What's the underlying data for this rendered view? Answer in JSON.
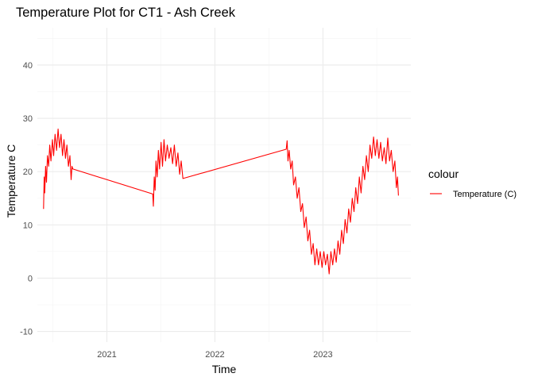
{
  "chart_data": {
    "type": "line",
    "title": "Temperature Plot for CT1 - Ash Creek",
    "xlabel": "Time",
    "ylabel": "Temperature C",
    "x_ticks": [
      "2021",
      "2022",
      "2023"
    ],
    "x_tick_values": [
      "2021-01-01",
      "2022-01-01",
      "2023-01-01"
    ],
    "y_ticks": [
      -10,
      0,
      10,
      20,
      30,
      40
    ],
    "xlim": [
      "2020-05-11",
      "2023-10-25"
    ],
    "ylim": [
      -12,
      47
    ],
    "grid": true,
    "legend": {
      "title": "colour",
      "position": "right"
    },
    "series": [
      {
        "name": "Temperature (C)",
        "color": "#ff0000",
        "points": [
          [
            "2020-06-01",
            13
          ],
          [
            "2020-06-03",
            19
          ],
          [
            "2020-06-05",
            16
          ],
          [
            "2020-06-08",
            21
          ],
          [
            "2020-06-11",
            18
          ],
          [
            "2020-06-14",
            23
          ],
          [
            "2020-06-18",
            21
          ],
          [
            "2020-06-22",
            25
          ],
          [
            "2020-06-26",
            22
          ],
          [
            "2020-07-01",
            26
          ],
          [
            "2020-07-05",
            23
          ],
          [
            "2020-07-10",
            27
          ],
          [
            "2020-07-15",
            24
          ],
          [
            "2020-07-20",
            28
          ],
          [
            "2020-07-25",
            24.5
          ],
          [
            "2020-07-30",
            27
          ],
          [
            "2020-08-04",
            23
          ],
          [
            "2020-08-09",
            26
          ],
          [
            "2020-08-14",
            22.5
          ],
          [
            "2020-08-19",
            25
          ],
          [
            "2020-08-24",
            21
          ],
          [
            "2020-08-29",
            23
          ],
          [
            "2020-09-02",
            18.5
          ],
          [
            "2020-09-05",
            21
          ],
          [
            "2020-09-08",
            20.5
          ],
          [
            "2021-06-05",
            15.8
          ],
          [
            "2021-06-07",
            13.5
          ],
          [
            "2021-06-10",
            19
          ],
          [
            "2021-06-13",
            16.5
          ],
          [
            "2021-06-16",
            22
          ],
          [
            "2021-06-20",
            19
          ],
          [
            "2021-06-24",
            24
          ],
          [
            "2021-06-28",
            20.5
          ],
          [
            "2021-07-03",
            25.5
          ],
          [
            "2021-07-08",
            21
          ],
          [
            "2021-07-13",
            26
          ],
          [
            "2021-07-18",
            22
          ],
          [
            "2021-07-24",
            25
          ],
          [
            "2021-07-30",
            22.5
          ],
          [
            "2021-08-05",
            24.5
          ],
          [
            "2021-08-11",
            21.5
          ],
          [
            "2021-08-17",
            25
          ],
          [
            "2021-08-23",
            21
          ],
          [
            "2021-08-29",
            23.5
          ],
          [
            "2021-09-04",
            19.5
          ],
          [
            "2021-09-09",
            22
          ],
          [
            "2021-09-15",
            18.7
          ],
          [
            "2022-08-30",
            24.2
          ],
          [
            "2022-09-02",
            25.8
          ],
          [
            "2022-09-05",
            22
          ],
          [
            "2022-09-09",
            24
          ],
          [
            "2022-09-14",
            20.5
          ],
          [
            "2022-09-19",
            22
          ],
          [
            "2022-09-24",
            17.5
          ],
          [
            "2022-09-30",
            19
          ],
          [
            "2022-10-06",
            15
          ],
          [
            "2022-10-12",
            17
          ],
          [
            "2022-10-18",
            12.5
          ],
          [
            "2022-10-24",
            14
          ],
          [
            "2022-10-30",
            9.5
          ],
          [
            "2022-11-05",
            11.5
          ],
          [
            "2022-11-11",
            7
          ],
          [
            "2022-11-17",
            9
          ],
          [
            "2022-11-23",
            4.5
          ],
          [
            "2022-11-29",
            6.5
          ],
          [
            "2022-12-05",
            2.5
          ],
          [
            "2022-12-11",
            5.5
          ],
          [
            "2022-12-17",
            2.5
          ],
          [
            "2022-12-23",
            5
          ],
          [
            "2022-12-29",
            2
          ],
          [
            "2023-01-04",
            5
          ],
          [
            "2023-01-10",
            2.5
          ],
          [
            "2023-01-16",
            4.5
          ],
          [
            "2023-01-22",
            0.8
          ],
          [
            "2023-01-28",
            5
          ],
          [
            "2023-02-03",
            2.5
          ],
          [
            "2023-02-09",
            5.5
          ],
          [
            "2023-02-15",
            3
          ],
          [
            "2023-02-21",
            7
          ],
          [
            "2023-02-27",
            4.5
          ],
          [
            "2023-03-05",
            9
          ],
          [
            "2023-03-11",
            6.5
          ],
          [
            "2023-03-17",
            11
          ],
          [
            "2023-03-23",
            8.5
          ],
          [
            "2023-03-29",
            13
          ],
          [
            "2023-04-04",
            10.5
          ],
          [
            "2023-04-10",
            15
          ],
          [
            "2023-04-16",
            12.5
          ],
          [
            "2023-04-22",
            17
          ],
          [
            "2023-04-28",
            14
          ],
          [
            "2023-05-04",
            19
          ],
          [
            "2023-05-10",
            16
          ],
          [
            "2023-05-16",
            21
          ],
          [
            "2023-05-22",
            18.5
          ],
          [
            "2023-05-28",
            23
          ],
          [
            "2023-06-03",
            20
          ],
          [
            "2023-06-09",
            25
          ],
          [
            "2023-06-15",
            22.5
          ],
          [
            "2023-06-21",
            26.5
          ],
          [
            "2023-06-27",
            23
          ],
          [
            "2023-07-03",
            26
          ],
          [
            "2023-07-09",
            22.5
          ],
          [
            "2023-07-15",
            25.5
          ],
          [
            "2023-07-21",
            22
          ],
          [
            "2023-07-27",
            24.5
          ],
          [
            "2023-08-02",
            21.5
          ],
          [
            "2023-08-08",
            26.3
          ],
          [
            "2023-08-14",
            22
          ],
          [
            "2023-08-20",
            24
          ],
          [
            "2023-08-26",
            20
          ],
          [
            "2023-09-01",
            22
          ],
          [
            "2023-09-06",
            17
          ],
          [
            "2023-09-10",
            19
          ],
          [
            "2023-09-13",
            15.5
          ]
        ]
      }
    ]
  }
}
